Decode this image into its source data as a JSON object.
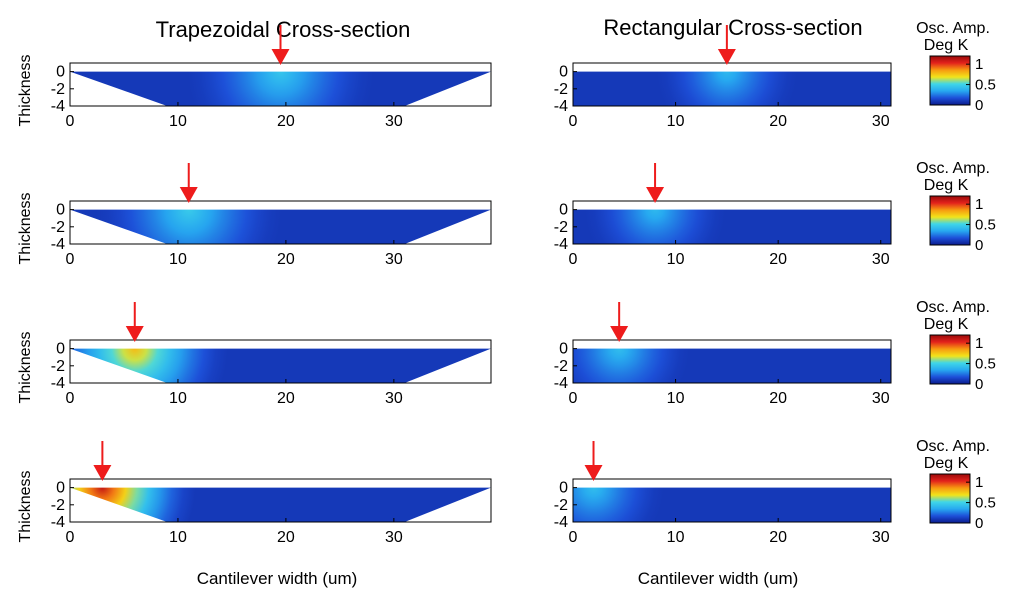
{
  "chart_data": {
    "type": "heatmap",
    "columns": [
      {
        "title": "Trapezoidal Cross-section",
        "shape": "trapezoid",
        "xlim": [
          0,
          39
        ],
        "xticks": [
          0,
          10,
          20,
          30
        ]
      },
      {
        "title": "Rectangular Cross-section",
        "shape": "rectangle",
        "xlim": [
          0,
          31
        ],
        "xticks": [
          0,
          10,
          20,
          30
        ]
      }
    ],
    "ylim": [
      -4,
      1
    ],
    "yticks": [
      0,
      -2,
      -4
    ],
    "ylabel": "Thickness",
    "xlabel": "Cantilever width (um)",
    "trapezoid": {
      "top_left": 0,
      "top_right": 39,
      "bottom_left": 9,
      "bottom_right": 31,
      "top": 0,
      "bottom": -4
    },
    "colorbar": {
      "label_line1": "Osc. Amp.",
      "label_line2": "Deg K",
      "ticks": [
        "1",
        "0.5",
        "0"
      ],
      "range": [
        0,
        1.2
      ]
    },
    "colormap": [
      "#0a1a8c",
      "#1d4fd8",
      "#27a9f0",
      "#3fd6e8",
      "#f2e41a",
      "#f79a10",
      "#e3221c",
      "#9a0a0a"
    ],
    "background_level": 0.1,
    "rows": [
      {
        "trapezoid_heat_x": 19.5,
        "rectangle_heat_x": 15,
        "trapezoid_peak": 0.45,
        "rectangle_peak": 0.4
      },
      {
        "trapezoid_heat_x": 11,
        "rectangle_heat_x": 8,
        "trapezoid_peak": 0.47,
        "rectangle_peak": 0.4
      },
      {
        "trapezoid_heat_x": 6,
        "rectangle_heat_x": 4.5,
        "trapezoid_peak": 0.78,
        "rectangle_peak": 0.42
      },
      {
        "trapezoid_heat_x": 3,
        "rectangle_heat_x": 2,
        "trapezoid_peak": 1.1,
        "rectangle_peak": 0.42
      }
    ],
    "arrow_color": "#ee1c1c"
  }
}
